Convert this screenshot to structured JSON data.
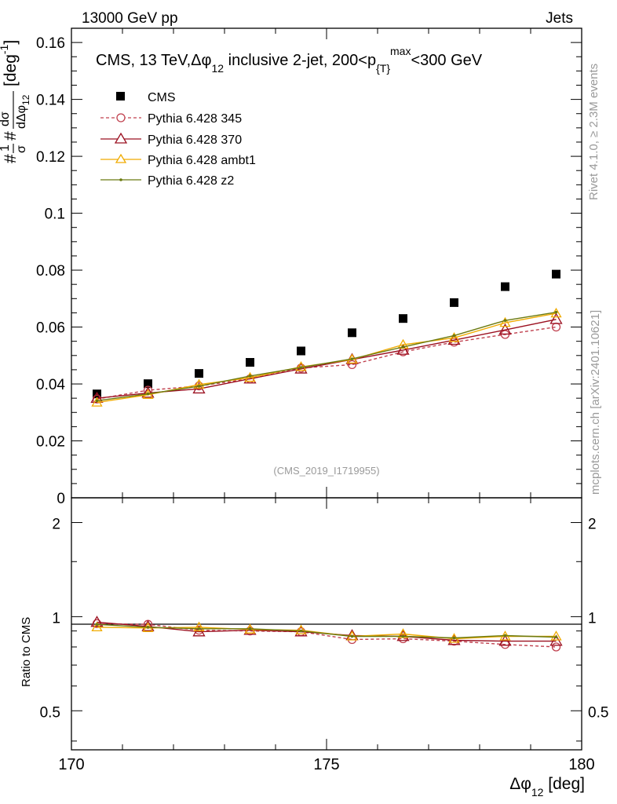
{
  "header": {
    "left": "13000 GeV pp",
    "right": "Jets"
  },
  "side_labels": {
    "rivet": "Rivet 4.1.0, ≥ 2.3M events",
    "mcplots": "mcplots.cern.ch [arXiv:2401.10621]"
  },
  "watermark": "(CMS_2019_I1719955)",
  "colors": {
    "cms": "#000000",
    "p345": "#c0404e",
    "p370": "#9b1020",
    "ambt1": "#f0ab00",
    "z2": "#6b7a10"
  },
  "chart_data": [
    {
      "type": "scatter",
      "title": "CMS, 13 TeV,Δφ12 inclusive 2-jet, 200<p{T}max<300 GeV",
      "title_parts": {
        "a": "CMS, 13 TeV,Δφ",
        "sub1": "12",
        "b": " inclusive 2-jet, 200<p",
        "sub2": "{T}",
        "sup": "max",
        "c": "<300 GeV"
      },
      "ylabel": "#1/σ #dσ/dΔφ12 [deg-1]",
      "ylabel_parts": {
        "a": "#",
        "b": "#",
        "c": "[deg",
        "sup": "-1",
        "d": "]",
        "frac1_num": "1",
        "frac1_den": "σ",
        "frac2_num": "dσ",
        "frac2_den": "dΔφ",
        "frac2_sub": "12"
      },
      "xlim": [
        170,
        180
      ],
      "ylim": [
        0,
        0.165
      ],
      "yticks": [
        0,
        0.02,
        0.04,
        0.06,
        0.08,
        0.1,
        0.12,
        0.14,
        0.16
      ],
      "ytick_labels": [
        "0",
        "0.02",
        "0.04",
        "0.06",
        "0.08",
        "0.1",
        "0.12",
        "0.14",
        "0.16"
      ],
      "x": [
        170.5,
        171.5,
        172.5,
        173.5,
        174.5,
        175.5,
        176.5,
        177.5,
        178.5,
        179.5
      ],
      "series": [
        {
          "name": "CMS",
          "key": "cms",
          "style": "square",
          "values": [
            0.0365,
            0.0401,
            0.0437,
            0.0476,
            0.0516,
            0.058,
            0.063,
            0.0686,
            0.0742,
            0.0786
          ]
        },
        {
          "name": "Pythia 6.428 345",
          "key": "p345",
          "style": "circle-dashed",
          "values": [
            0.0347,
            0.0378,
            0.0393,
            0.0418,
            0.0456,
            0.0468,
            0.0513,
            0.0547,
            0.0574,
            0.06
          ]
        },
        {
          "name": "Pythia 6.428 370",
          "key": "p370",
          "style": "triangle",
          "values": [
            0.035,
            0.0368,
            0.0383,
            0.0418,
            0.0453,
            0.0486,
            0.0519,
            0.0554,
            0.059,
            0.0627
          ]
        },
        {
          "name": "Pythia 6.428 ambt1",
          "key": "ambt1",
          "style": "triangle",
          "values": [
            0.0335,
            0.0362,
            0.0398,
            0.0422,
            0.046,
            0.0486,
            0.0538,
            0.0562,
            0.0615,
            0.0648
          ]
        },
        {
          "name": "Pythia 6.428 z2",
          "key": "z2",
          "style": "dot",
          "values": [
            0.0341,
            0.0365,
            0.0392,
            0.0428,
            0.0458,
            0.0488,
            0.053,
            0.057,
            0.0623,
            0.0652
          ]
        }
      ]
    },
    {
      "type": "line",
      "ylabel": "Ratio to CMS",
      "xlabel": "Δφ12 [deg]",
      "xlabel_parts": {
        "a": "Δφ",
        "sub": "12",
        "b": " [deg]"
      },
      "xlim": [
        170,
        180
      ],
      "ylim_log": [
        0.375,
        2.4
      ],
      "yticks": [
        0.5,
        1,
        2
      ],
      "ytick_labels": [
        "0.5",
        "1",
        "2"
      ],
      "xticks": [
        170,
        175,
        180
      ],
      "xtick_labels": [
        "170",
        "175",
        "180"
      ],
      "x": [
        170.5,
        171.5,
        172.5,
        173.5,
        174.5,
        175.5,
        176.5,
        177.5,
        178.5,
        179.5
      ],
      "series": [
        {
          "name": "Pythia 6.428 345",
          "key": "p345",
          "style": "circle-dashed",
          "values": [
            0.95,
            0.945,
            0.905,
            0.9,
            0.895,
            0.845,
            0.85,
            0.835,
            0.815,
            0.8
          ]
        },
        {
          "name": "Pythia 6.428 370",
          "key": "p370",
          "style": "triangle",
          "values": [
            0.96,
            0.93,
            0.895,
            0.905,
            0.895,
            0.87,
            0.865,
            0.84,
            0.835,
            0.835
          ]
        },
        {
          "name": "Pythia 6.428 ambt1",
          "key": "ambt1",
          "style": "triangle",
          "values": [
            0.925,
            0.92,
            0.925,
            0.91,
            0.905,
            0.865,
            0.88,
            0.85,
            0.865,
            0.865
          ]
        },
        {
          "name": "Pythia 6.428 z2",
          "key": "z2",
          "style": "dot",
          "values": [
            0.945,
            0.925,
            0.915,
            0.915,
            0.9,
            0.865,
            0.865,
            0.855,
            0.87,
            0.86
          ]
        }
      ]
    }
  ]
}
